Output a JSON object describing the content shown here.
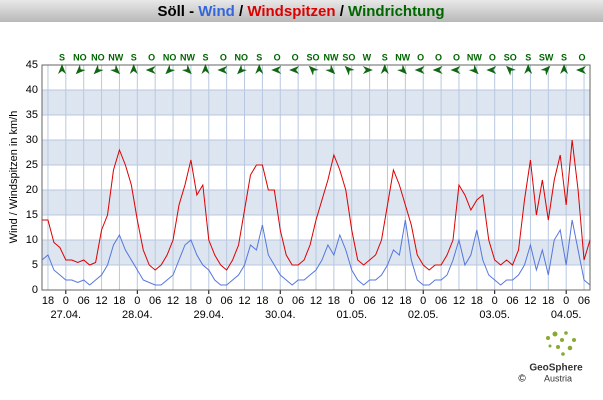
{
  "chart_data": {
    "type": "line",
    "title": [
      {
        "text": "Söll - ",
        "color": "#000000"
      },
      {
        "text": "Wind",
        "color": "#3366dd"
      },
      {
        "text": " / ",
        "color": "#000000"
      },
      {
        "text": "Windspitzen",
        "color": "#dd0000"
      },
      {
        "text": " / ",
        "color": "#000000"
      },
      {
        "text": "Windrichtung",
        "color": "#006600"
      }
    ],
    "y_label": "Wind / Windspitzen in km/h",
    "x": [
      -8,
      -6,
      -4,
      -2,
      0,
      2,
      4,
      6,
      8,
      10,
      12,
      14,
      16,
      18,
      20,
      22,
      24,
      26,
      28,
      30,
      32,
      34,
      36,
      38,
      40,
      42,
      44,
      46,
      48,
      50,
      52,
      54,
      56,
      58,
      60,
      62,
      64,
      66,
      68,
      70,
      72,
      74,
      76,
      78,
      80,
      82,
      84,
      86,
      88,
      90,
      92,
      94,
      96,
      98,
      100,
      102,
      104,
      106,
      108,
      110,
      112,
      114,
      116,
      118,
      120,
      122,
      124,
      126,
      128,
      130,
      132,
      134,
      136,
      138,
      140,
      142,
      144,
      146,
      148,
      150,
      152,
      154,
      156,
      158,
      160,
      162,
      164,
      166,
      168,
      170,
      172,
      174,
      176
    ],
    "series": [
      {
        "name": "Windspitzen",
        "color": "#dd0000",
        "values": [
          14,
          14,
          9.5,
          8.5,
          6,
          6,
          5.5,
          6,
          5,
          5.5,
          12,
          15,
          24,
          28,
          25,
          21,
          14,
          8,
          5,
          4,
          5,
          7,
          10,
          17,
          21,
          26,
          19,
          21,
          10,
          7,
          5,
          4,
          6,
          9,
          16,
          23,
          25,
          25,
          20,
          20,
          12,
          7,
          5,
          5,
          6,
          9,
          14,
          18,
          22,
          27,
          24,
          20,
          12,
          6,
          5,
          6,
          7,
          10,
          17,
          24,
          21,
          17,
          13,
          7,
          5,
          4,
          5,
          5,
          7,
          10,
          21,
          19,
          16,
          18,
          19,
          10,
          6,
          5,
          6,
          5,
          8,
          18,
          26,
          15,
          22,
          14,
          22,
          27,
          17,
          30,
          20,
          6,
          10
        ]
      },
      {
        "name": "Wind",
        "color": "#5577dd",
        "values": [
          6,
          7,
          4,
          3,
          2,
          2,
          1.5,
          2,
          1,
          2,
          3,
          5,
          9,
          11,
          8,
          6,
          4,
          2,
          1.5,
          1,
          1,
          2,
          3,
          6,
          9,
          10,
          7,
          5,
          4,
          2,
          1,
          1,
          2,
          3,
          5,
          9,
          8,
          13,
          7,
          5,
          3,
          2,
          1,
          2,
          2,
          3,
          4,
          6,
          9,
          7,
          11,
          8,
          4,
          2,
          1,
          2,
          2,
          3,
          5,
          8,
          7,
          14,
          6,
          2,
          1,
          1,
          2,
          2,
          3,
          6,
          10,
          5,
          7,
          12,
          6,
          3,
          2,
          1,
          2,
          2,
          3,
          5,
          9,
          4,
          8,
          3,
          10,
          12,
          5,
          14,
          8,
          2,
          1
        ]
      }
    ],
    "xlim": [
      -8,
      176
    ],
    "xticks": [
      {
        "value": -6,
        "label": "18"
      },
      0,
      {
        "value": 6,
        "label": "06"
      },
      12,
      18,
      {
        "value": 24,
        "label": "0"
      },
      {
        "value": 30,
        "label": "06"
      },
      {
        "value": 36,
        "label": "12"
      },
      {
        "value": 42,
        "label": "18"
      },
      {
        "value": 48,
        "label": "0"
      },
      {
        "value": 54,
        "label": "06"
      },
      {
        "value": 60,
        "label": "12"
      },
      {
        "value": 66,
        "label": "18"
      },
      {
        "value": 72,
        "label": "0"
      },
      {
        "value": 78,
        "label": "06"
      },
      {
        "value": 84,
        "label": "12"
      },
      {
        "value": 90,
        "label": "18"
      },
      {
        "value": 96,
        "label": "0"
      },
      {
        "value": 102,
        "label": "06"
      },
      {
        "value": 108,
        "label": "12"
      },
      {
        "value": 114,
        "label": "18"
      },
      {
        "value": 120,
        "label": "0"
      },
      {
        "value": 126,
        "label": "06"
      },
      {
        "value": 132,
        "label": "12"
      },
      {
        "value": 138,
        "label": "18"
      },
      {
        "value": 144,
        "label": "0"
      },
      {
        "value": 150,
        "label": "06"
      },
      {
        "value": 156,
        "label": "12"
      },
      {
        "value": 162,
        "label": "18"
      },
      {
        "value": 168,
        "label": "0"
      },
      {
        "value": 174,
        "label": "06"
      }
    ],
    "dates": [
      {
        "value": 0,
        "label": "27.04."
      },
      {
        "value": 24,
        "label": "28.04."
      },
      {
        "value": 48,
        "label": "29.04."
      },
      {
        "value": 72,
        "label": "30.04."
      },
      {
        "value": 96,
        "label": "01.05."
      },
      {
        "value": 120,
        "label": "02.05."
      },
      {
        "value": 144,
        "label": "03.05."
      },
      {
        "value": 168,
        "label": "04.05."
      }
    ],
    "ylim": [
      0,
      45
    ],
    "yticks": [
      0,
      5,
      10,
      15,
      20,
      25,
      30,
      35,
      40,
      45
    ],
    "wind_direction": [
      "S",
      "NO",
      "NO",
      "NW",
      "S",
      "O",
      "NO",
      "NW",
      "S",
      "O",
      "NO",
      "S",
      "O",
      "O",
      "SO",
      "NW",
      "SO",
      "W",
      "S",
      "NW",
      "O",
      "O",
      "O",
      "NW",
      "O",
      "SO",
      "S",
      "SW",
      "S",
      "O"
    ],
    "grid": true,
    "logo": {
      "name": "GeoSphere",
      "sub": "Austria",
      "copyright": "©"
    }
  }
}
